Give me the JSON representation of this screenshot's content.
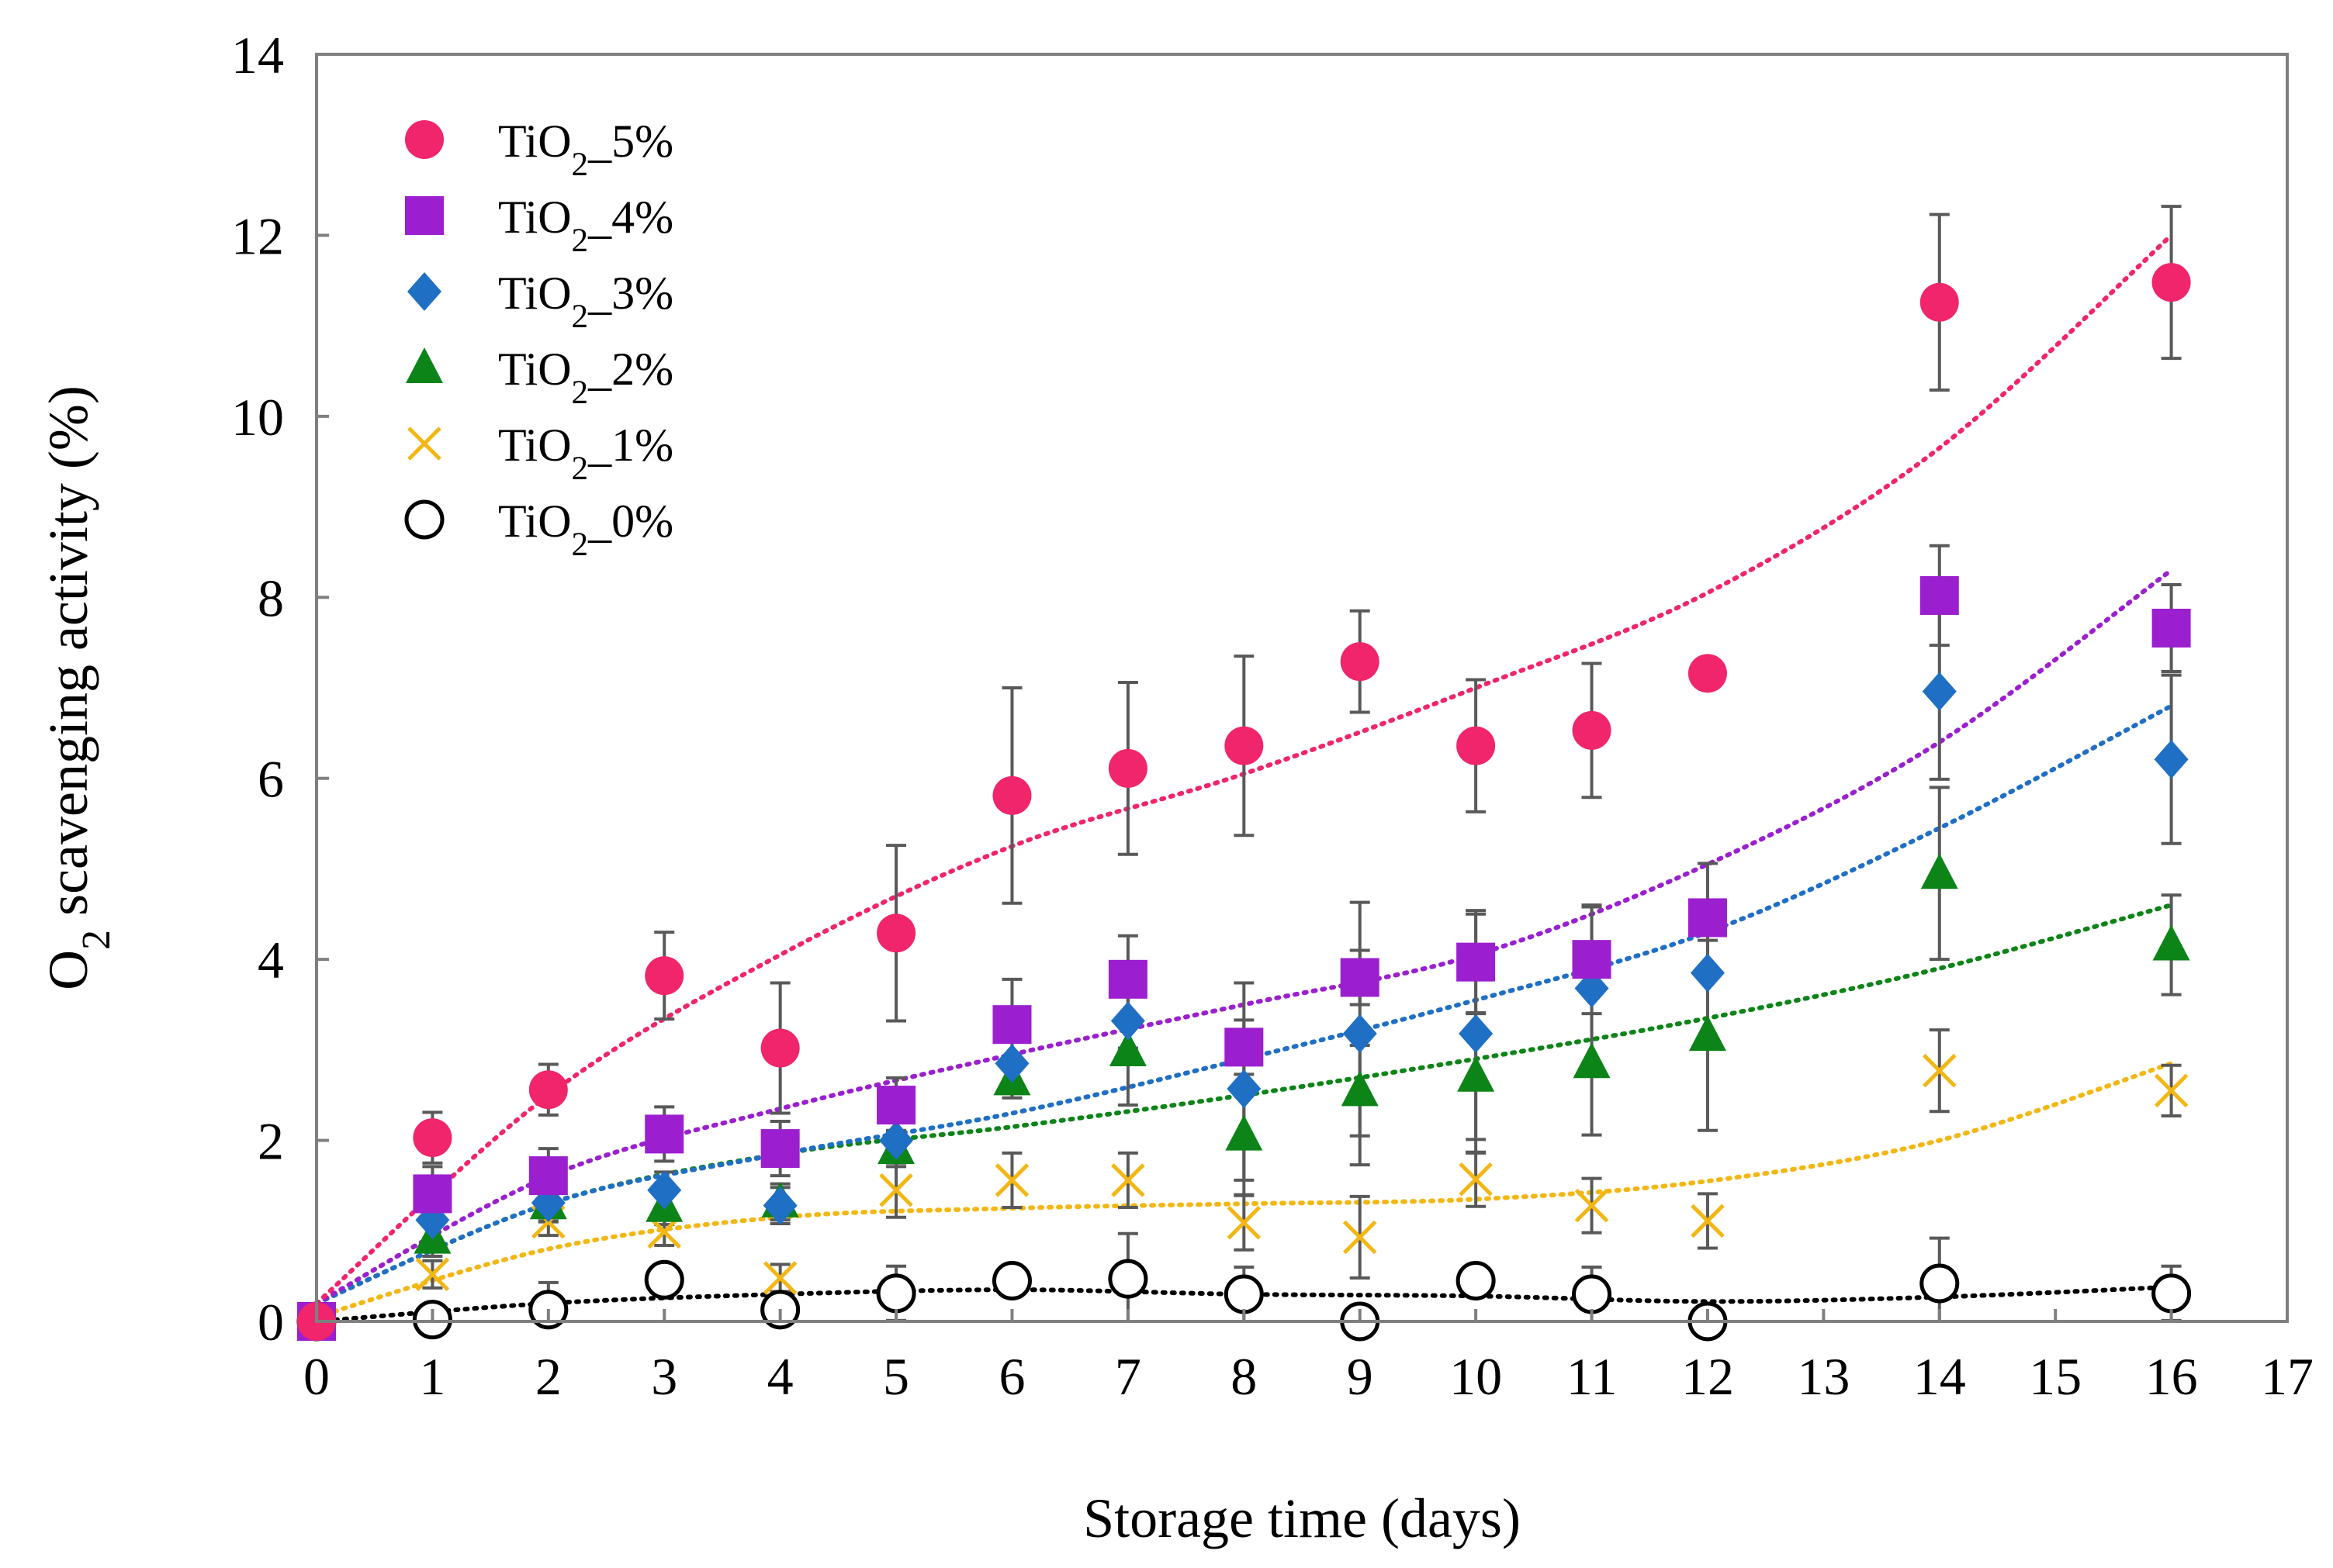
{
  "chart_data": {
    "type": "scatter",
    "title": "",
    "xlabel": "Storage time (days)",
    "ylabel": "O2 scavenging activity (%)",
    "ylabel_parts": {
      "pre": "O",
      "sub": "2",
      "post": " scavenging activity (%)"
    },
    "xlim": [
      0,
      17
    ],
    "ylim": [
      0,
      14
    ],
    "xticks": [
      0,
      1,
      2,
      3,
      4,
      5,
      6,
      7,
      8,
      9,
      10,
      11,
      12,
      13,
      14,
      15,
      16,
      17
    ],
    "yticks": [
      0,
      2,
      4,
      6,
      8,
      10,
      12,
      14
    ],
    "grid": false,
    "legend_position": "top-left",
    "series": [
      {
        "name": "TiO2_5%",
        "label_parts": {
          "pre": "TiO",
          "sub": "2",
          "post": "_5%"
        },
        "marker": "circle-filled",
        "color": "#F0256B",
        "x": [
          0,
          1,
          2,
          3,
          4,
          5,
          6,
          7,
          8,
          9,
          10,
          11,
          12,
          14,
          16
        ],
        "y": [
          0,
          2.03,
          2.56,
          3.82,
          3.02,
          4.29,
          5.81,
          6.11,
          6.36,
          7.29,
          6.36,
          6.53,
          7.16,
          11.26,
          11.48
        ],
        "err": [
          0,
          0.28,
          0.28,
          0.48,
          0.72,
          0.97,
          1.19,
          0.95,
          0.99,
          0.56,
          0.73,
          0.74,
          0,
          0.97,
          0.84
        ],
        "trend": [
          [
            0,
            0.2
          ],
          [
            2,
            2.5
          ],
          [
            4,
            4.05
          ],
          [
            6,
            5.25
          ],
          [
            8,
            6.05
          ],
          [
            10,
            7.0
          ],
          [
            12,
            8.05
          ],
          [
            14,
            9.65
          ],
          [
            16,
            12.0
          ]
        ]
      },
      {
        "name": "TiO2_4%",
        "label_parts": {
          "pre": "TiO",
          "sub": "2",
          "post": "_4%"
        },
        "marker": "square",
        "color": "#9B1FCE",
        "x": [
          0,
          1,
          2,
          3,
          4,
          5,
          6,
          7,
          8,
          9,
          10,
          11,
          12,
          14,
          16
        ],
        "y": [
          0,
          1.41,
          1.61,
          2.07,
          1.91,
          2.39,
          3.28,
          3.78,
          3.03,
          3.8,
          3.97,
          4.0,
          4.46,
          8.02,
          7.66
        ],
        "err": [
          0,
          0.3,
          0.3,
          0.3,
          0.3,
          0.3,
          0.5,
          0.48,
          0.3,
          0.3,
          0.57,
          0.6,
          0.6,
          0.55,
          0.48
        ],
        "trend": [
          [
            0,
            0.2
          ],
          [
            2,
            1.6
          ],
          [
            4,
            2.35
          ],
          [
            6,
            2.95
          ],
          [
            8,
            3.5
          ],
          [
            10,
            4.05
          ],
          [
            12,
            5.05
          ],
          [
            14,
            6.4
          ],
          [
            16,
            8.3
          ]
        ]
      },
      {
        "name": "TiO2_3%",
        "label_parts": {
          "pre": "TiO",
          "sub": "2",
          "post": "_3%"
        },
        "marker": "diamond",
        "color": "#1F6FC4",
        "x": [
          0,
          1,
          2,
          3,
          4,
          5,
          6,
          7,
          8,
          9,
          10,
          11,
          12,
          14,
          16
        ],
        "y": [
          0,
          1.12,
          1.31,
          1.45,
          1.28,
          2.0,
          2.85,
          3.32,
          2.57,
          3.18,
          3.18,
          3.68,
          3.85,
          6.96,
          6.21
        ],
        "err": [
          0,
          0.2,
          0.2,
          0.2,
          0.2,
          0.2,
          0.3,
          0.3,
          1.17,
          1.45,
          1.32,
          0.9,
          0,
          0.97,
          0.93
        ],
        "trend": [
          [
            0,
            0.2
          ],
          [
            2,
            1.3
          ],
          [
            4,
            1.85
          ],
          [
            6,
            2.3
          ],
          [
            8,
            2.9
          ],
          [
            10,
            3.55
          ],
          [
            12,
            4.3
          ],
          [
            14,
            5.45
          ],
          [
            16,
            6.8
          ]
        ]
      },
      {
        "name": "TiO2_2%",
        "label_parts": {
          "pre": "TiO",
          "sub": "2",
          "post": "_2%"
        },
        "marker": "triangle",
        "color": "#0C8417",
        "x": [
          0,
          1,
          2,
          3,
          4,
          5,
          6,
          7,
          8,
          9,
          10,
          11,
          12,
          14,
          16
        ],
        "y": [
          0,
          0.92,
          1.3,
          1.27,
          1.32,
          1.91,
          2.67,
          2.99,
          2.06,
          2.55,
          2.71,
          2.86,
          3.16,
          4.95,
          4.16
        ],
        "err": [
          0,
          0.2,
          0.2,
          0.2,
          0.2,
          0.2,
          0.2,
          0.6,
          0.5,
          0.5,
          0.7,
          0.8,
          1.05,
          0.95,
          0.55
        ],
        "trend": [
          [
            0,
            0.2
          ],
          [
            2,
            1.3
          ],
          [
            4,
            1.85
          ],
          [
            6,
            2.15
          ],
          [
            8,
            2.5
          ],
          [
            10,
            2.9
          ],
          [
            12,
            3.35
          ],
          [
            14,
            3.9
          ],
          [
            16,
            4.6
          ]
        ]
      },
      {
        "name": "TiO2_1%",
        "label_parts": {
          "pre": "TiO",
          "sub": "2",
          "post": "_1%"
        },
        "marker": "x",
        "color": "#F2B714",
        "x": [
          0,
          1,
          2,
          3,
          4,
          5,
          6,
          7,
          8,
          9,
          10,
          11,
          12,
          14,
          16
        ],
        "y": [
          0,
          0.52,
          1.1,
          0.99,
          0.48,
          1.45,
          1.56,
          1.56,
          1.09,
          0.93,
          1.57,
          1.28,
          1.11,
          2.77,
          2.55
        ],
        "err": [
          0,
          0.15,
          0.15,
          0.15,
          0.15,
          0.3,
          0.3,
          0.3,
          0.3,
          0.45,
          0.3,
          0.3,
          0.3,
          0.45,
          0.28
        ],
        "trend": [
          [
            0,
            0.05
          ],
          [
            2,
            0.8
          ],
          [
            4,
            1.15
          ],
          [
            6,
            1.25
          ],
          [
            8,
            1.3
          ],
          [
            10,
            1.35
          ],
          [
            12,
            1.55
          ],
          [
            14,
            2.0
          ],
          [
            16,
            2.85
          ]
        ]
      },
      {
        "name": "TiO2_0%",
        "label_parts": {
          "pre": "TiO",
          "sub": "2",
          "post": "_0%"
        },
        "marker": "circle-open",
        "color": "#000000",
        "x": [
          0,
          1,
          2,
          3,
          4,
          5,
          6,
          7,
          8,
          9,
          10,
          11,
          12,
          14,
          16
        ],
        "y": [
          0,
          0.02,
          0.13,
          0.46,
          0.13,
          0.31,
          0.45,
          0.47,
          0.3,
          0,
          0.45,
          0.3,
          0,
          0.42,
          0.31
        ],
        "err": [
          0,
          0.1,
          0.3,
          0.1,
          0.1,
          0.3,
          0.1,
          0.5,
          0.3,
          0.1,
          0.1,
          0.3,
          0,
          0.5,
          0.3
        ],
        "trend": [
          [
            0,
            0.0
          ],
          [
            2,
            0.2
          ],
          [
            4,
            0.3
          ],
          [
            6,
            0.35
          ],
          [
            8,
            0.3
          ],
          [
            10,
            0.28
          ],
          [
            12,
            0.22
          ],
          [
            14,
            0.27
          ],
          [
            16,
            0.38
          ]
        ]
      }
    ]
  }
}
